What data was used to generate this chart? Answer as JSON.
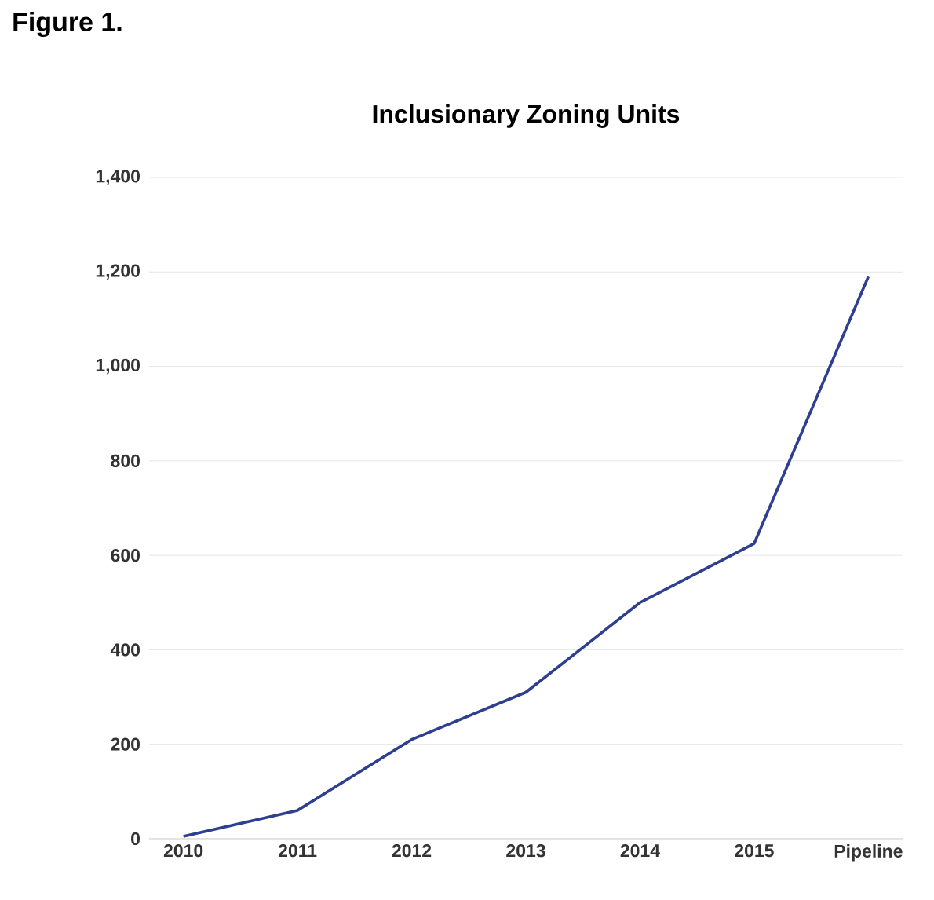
{
  "chart_data": {
    "type": "line",
    "title": "Inclusionary Zoning Units",
    "annotations": [
      "Figure 1."
    ],
    "categories": [
      "2010",
      "2011",
      "2012",
      "2013",
      "2014",
      "2015",
      "Pipeline"
    ],
    "series": [
      {
        "color": "#2e3f8f",
        "values": [
          5,
          60,
          210,
          310,
          500,
          625,
          1190
        ]
      }
    ],
    "ylim": [
      0,
      1400
    ],
    "yticks": [
      {
        "value": 0,
        "label": "0"
      },
      {
        "value": 200,
        "label": "200"
      },
      {
        "value": 400,
        "label": "400"
      },
      {
        "value": 600,
        "label": "600"
      },
      {
        "value": 800,
        "label": "800"
      },
      {
        "value": 1000,
        "label": "1,000"
      },
      {
        "value": 1200,
        "label": "1,200"
      },
      {
        "value": 1400,
        "label": "1,400"
      }
    ],
    "grid": "y",
    "marker": "none",
    "line_style": "solid"
  }
}
